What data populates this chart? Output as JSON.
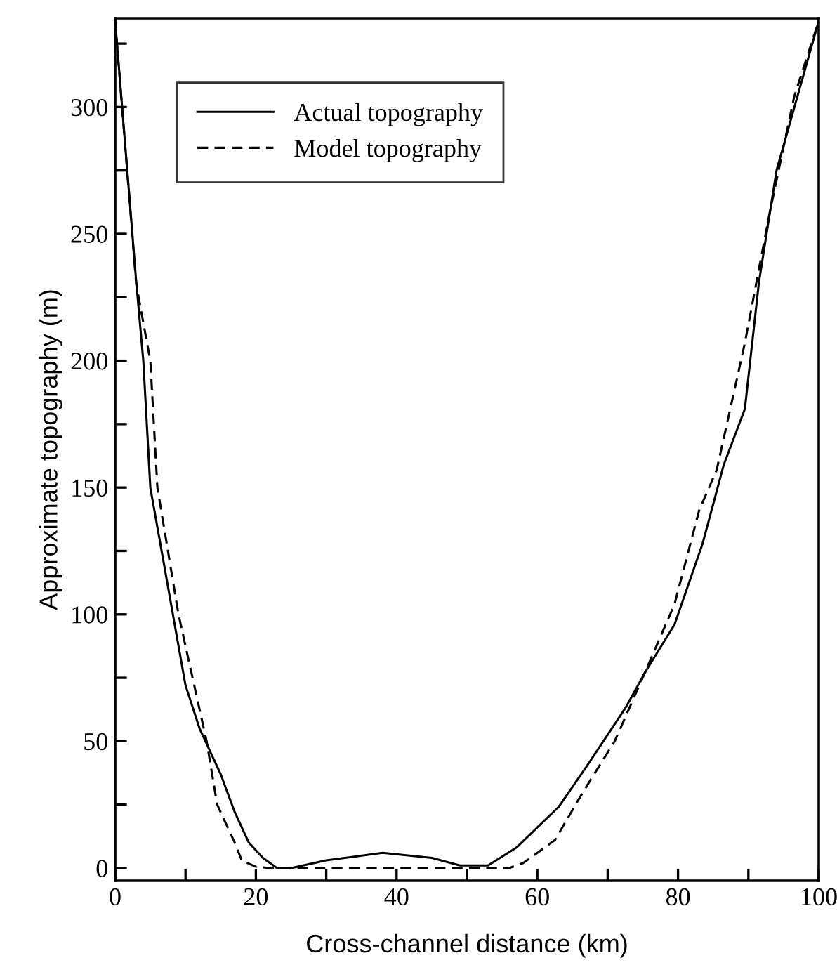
{
  "chart_data": {
    "type": "line",
    "xlabel": "Cross-channel distance (km)",
    "ylabel": "Approximate topography (m)",
    "xlim": [
      0,
      100
    ],
    "ylim": [
      -5,
      335
    ],
    "xticks": [
      0,
      {
        "value": 10,
        "label": null
      },
      20,
      {
        "value": 30,
        "label": null
      },
      40,
      {
        "value": 50,
        "label": null
      },
      60,
      {
        "value": 70,
        "label": null
      },
      80,
      {
        "value": 90,
        "label": null
      },
      100
    ],
    "yticks": [
      0,
      {
        "value": 25,
        "label": null
      },
      50,
      {
        "value": 75,
        "label": null
      },
      100,
      {
        "value": 125,
        "label": null
      },
      150,
      {
        "value": 175,
        "label": null
      },
      200,
      {
        "value": 225,
        "label": null
      },
      250,
      {
        "value": 275,
        "label": null
      },
      300,
      {
        "value": 325,
        "label": null
      }
    ],
    "grid": false,
    "legend": "top left",
    "series": [
      {
        "name": "Actual topography",
        "color": "#000000",
        "line_style": "solid",
        "x": [
          0,
          3,
          4,
          5,
          10,
          12,
          15,
          17,
          19,
          21,
          23,
          25,
          30,
          38,
          45,
          49,
          53,
          57,
          63,
          67,
          72.5,
          75.5,
          79.5,
          83.5,
          86.5,
          89.5,
          91.5,
          94,
          100
        ],
        "values": [
          334,
          231,
          200,
          150,
          72,
          55,
          37,
          22,
          10,
          4,
          0,
          0,
          3,
          6,
          4,
          1,
          1,
          8,
          24,
          40,
          63,
          78,
          96,
          128,
          159,
          181,
          231,
          275,
          334
        ]
      },
      {
        "name": "Model topography",
        "color": "#000000",
        "line_style": "dashed",
        "x": [
          0,
          3,
          5,
          6,
          9,
          13,
          14.5,
          17,
          18,
          20,
          22,
          30,
          40,
          50,
          56,
          58,
          62.5,
          66.5,
          71,
          74.5,
          79.5,
          83,
          85.5,
          89.5,
          93,
          96.5,
          100
        ],
        "values": [
          334,
          230,
          200,
          150,
          100,
          50,
          25,
          10,
          3,
          0.5,
          0,
          0,
          0,
          0,
          0,
          2,
          11,
          30,
          50,
          72,
          104,
          141,
          157,
          207,
          258,
          304,
          334
        ]
      }
    ]
  }
}
